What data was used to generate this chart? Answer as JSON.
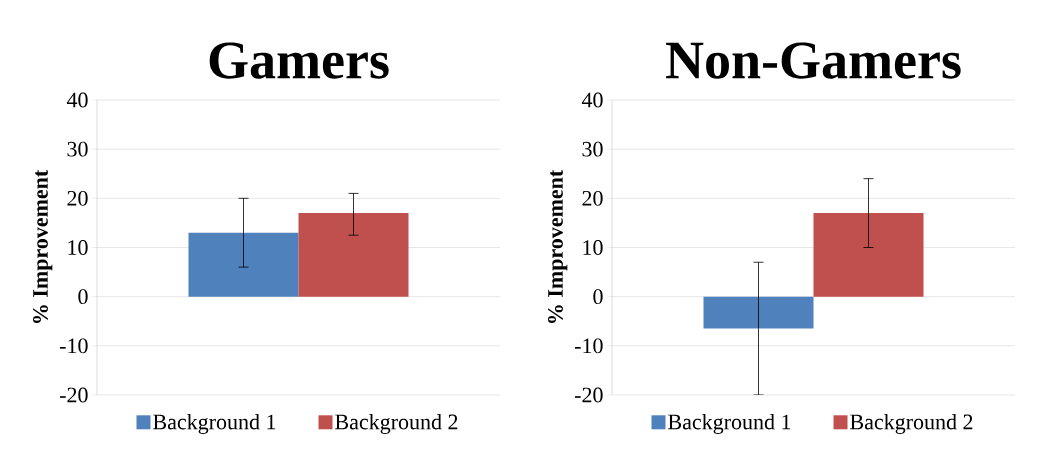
{
  "chart_data": [
    {
      "type": "bar",
      "title": "Gamers",
      "ylabel": "% Improvement",
      "categories": [
        null
      ],
      "ylim": [
        -20,
        40
      ],
      "yticks": [
        -20,
        -10,
        0,
        10,
        20,
        30,
        40
      ],
      "grid": "y",
      "legend": "bottom",
      "series": [
        {
          "name": "Background 1",
          "color": "#4f81bd",
          "values": [
            13
          ],
          "errors": [
            [
              6,
              20
            ]
          ]
        },
        {
          "name": "Background 2",
          "color": "#c0504d",
          "values": [
            17
          ],
          "errors": [
            [
              12.5,
              21
            ]
          ]
        }
      ]
    },
    {
      "type": "bar",
      "title": "Non-Gamers",
      "ylabel": "% Improvement",
      "categories": [
        null
      ],
      "ylim": [
        -20,
        40
      ],
      "yticks": [
        -20,
        -10,
        0,
        10,
        20,
        30,
        40
      ],
      "grid": "y",
      "legend": "bottom",
      "series": [
        {
          "name": "Background 1",
          "color": "#4f81bd",
          "values": [
            -6.5
          ],
          "errors": [
            [
              -20,
              7
            ]
          ]
        },
        {
          "name": "Background 2",
          "color": "#c0504d",
          "values": [
            17
          ],
          "errors": [
            [
              10,
              24
            ]
          ]
        }
      ]
    }
  ]
}
